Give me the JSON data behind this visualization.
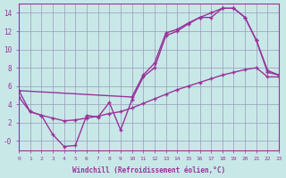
{
  "background_color": "#c8e8e8",
  "grid_color": "#9999bb",
  "line_color": "#993399",
  "xlabel": "Windchill (Refroidissement éolien,°C)",
  "xlim": [
    0,
    23
  ],
  "ylim": [
    -1,
    15
  ],
  "x_ticks": [
    0,
    1,
    2,
    3,
    4,
    5,
    6,
    7,
    8,
    9,
    10,
    11,
    12,
    13,
    14,
    15,
    16,
    17,
    18,
    19,
    20,
    21,
    22,
    23
  ],
  "yticks": [
    0,
    2,
    4,
    6,
    8,
    10,
    12,
    14
  ],
  "ytick_labels": [
    "-0",
    "2",
    "4",
    "6",
    "8",
    "10",
    "12",
    "14"
  ],
  "line_jagged_x": [
    0,
    1,
    2,
    3,
    4,
    5,
    6,
    7,
    8,
    9,
    10,
    11,
    12,
    13,
    14,
    15,
    16,
    17,
    18,
    19,
    20,
    21,
    22,
    23
  ],
  "line_jagged_y": [
    5.5,
    3.2,
    2.8,
    0.7,
    -0.6,
    -0.5,
    2.8,
    2.6,
    4.2,
    1.2,
    4.5,
    7.0,
    8.0,
    11.5,
    12.0,
    12.8,
    13.5,
    13.5,
    14.5,
    14.5,
    13.5,
    11.0,
    7.5,
    7.2
  ],
  "line_upper_x": [
    0,
    10,
    11,
    12,
    13,
    14,
    15,
    16,
    17,
    18,
    19,
    20,
    21,
    22,
    23
  ],
  "line_upper_y": [
    5.5,
    4.8,
    7.2,
    8.5,
    11.8,
    12.2,
    12.9,
    13.5,
    14.0,
    14.5,
    14.5,
    13.5,
    11.0,
    7.7,
    7.2
  ],
  "line_linear_x": [
    0,
    1,
    2,
    3,
    4,
    5,
    6,
    7,
    8,
    9,
    10,
    11,
    12,
    13,
    14,
    15,
    16,
    17,
    18,
    19,
    20,
    21,
    22,
    23
  ],
  "line_linear_y": [
    4.8,
    3.2,
    2.8,
    2.5,
    2.2,
    2.3,
    2.5,
    2.7,
    3.0,
    3.2,
    3.6,
    4.1,
    4.6,
    5.1,
    5.6,
    6.0,
    6.4,
    6.8,
    7.2,
    7.5,
    7.8,
    8.0,
    7.0,
    7.0
  ]
}
